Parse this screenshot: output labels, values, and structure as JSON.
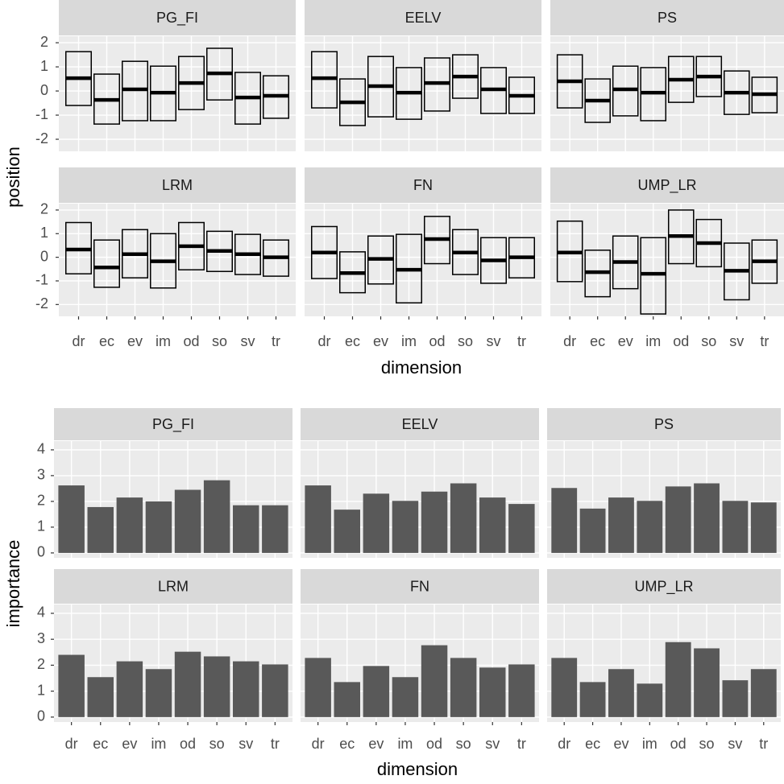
{
  "chart_data": [
    {
      "type": "crossbar",
      "xlabel": "dimension",
      "ylabel": "position",
      "color": "#000000",
      "grid": true,
      "categories": [
        "dr",
        "ec",
        "ev",
        "im",
        "od",
        "so",
        "sv",
        "tr"
      ],
      "ylim": [
        -2.5,
        2.27
      ],
      "yticks": [
        -2,
        -1,
        0,
        1,
        2
      ],
      "facets": [
        {
          "title": "PG_FI",
          "values": [
            0.53,
            -0.37,
            0.07,
            -0.07,
            0.33,
            0.73,
            -0.27,
            -0.2
          ],
          "lower": [
            -0.6,
            -1.37,
            -1.23,
            -1.23,
            -0.77,
            -0.37,
            -1.37,
            -1.13
          ],
          "upper": [
            1.63,
            0.7,
            1.23,
            1.03,
            1.43,
            1.77,
            0.77,
            0.63
          ]
        },
        {
          "title": "EELV",
          "values": [
            0.53,
            -0.47,
            0.2,
            -0.07,
            0.33,
            0.6,
            0.07,
            -0.2
          ],
          "lower": [
            -0.7,
            -1.43,
            -1.07,
            -1.17,
            -0.83,
            -0.3,
            -0.93,
            -0.93
          ],
          "upper": [
            1.63,
            0.5,
            1.43,
            0.97,
            1.37,
            1.5,
            0.97,
            0.57
          ]
        },
        {
          "title": "PS",
          "values": [
            0.4,
            -0.4,
            0.07,
            -0.07,
            0.47,
            0.6,
            -0.07,
            -0.13
          ],
          "lower": [
            -0.7,
            -1.3,
            -1.03,
            -1.23,
            -0.47,
            -0.23,
            -0.97,
            -0.9
          ],
          "upper": [
            1.5,
            0.5,
            1.03,
            0.97,
            1.43,
            1.43,
            0.83,
            0.57
          ]
        },
        {
          "title": "LRM",
          "values": [
            0.33,
            -0.43,
            0.13,
            -0.17,
            0.47,
            0.27,
            0.13,
            0
          ],
          "lower": [
            -0.7,
            -1.27,
            -0.87,
            -1.3,
            -0.53,
            -0.6,
            -0.73,
            -0.8
          ],
          "upper": [
            1.47,
            0.73,
            1.17,
            1.0,
            1.47,
            1.1,
            0.97,
            0.73
          ]
        },
        {
          "title": "FN",
          "values": [
            0.2,
            -0.67,
            -0.07,
            -0.53,
            0.77,
            0.2,
            -0.13,
            0
          ],
          "lower": [
            -0.9,
            -1.5,
            -1.13,
            -1.93,
            -0.27,
            -0.73,
            -1.1,
            -0.87
          ],
          "upper": [
            1.3,
            0.23,
            0.9,
            0.97,
            1.73,
            1.17,
            0.83,
            0.83
          ]
        },
        {
          "title": "UMP_LR",
          "values": [
            0.2,
            -0.63,
            -0.2,
            -0.7,
            0.9,
            0.6,
            -0.57,
            -0.17
          ],
          "lower": [
            -1.03,
            -1.67,
            -1.33,
            -2.4,
            -0.27,
            -0.4,
            -1.8,
            -1.1
          ],
          "upper": [
            1.53,
            0.3,
            0.9,
            0.83,
            2.0,
            1.6,
            0.6,
            0.73
          ]
        }
      ]
    },
    {
      "type": "bar",
      "xlabel": "dimension",
      "ylabel": "importance",
      "color": "#595959",
      "grid": true,
      "categories": [
        "dr",
        "ec",
        "ev",
        "im",
        "od",
        "so",
        "sv",
        "tr"
      ],
      "ylim": [
        -0.19,
        4.34
      ],
      "yticks": [
        0,
        1,
        2,
        3,
        4
      ],
      "facets": [
        {
          "title": "PG_FI",
          "values": [
            2.62,
            1.78,
            2.15,
            2.0,
            2.45,
            2.82,
            1.85,
            1.85
          ]
        },
        {
          "title": "EELV",
          "values": [
            2.62,
            1.68,
            2.3,
            2.02,
            2.38,
            2.7,
            2.15,
            1.9
          ]
        },
        {
          "title": "PS",
          "values": [
            2.52,
            1.72,
            2.15,
            2.02,
            2.58,
            2.7,
            2.02,
            1.96
          ]
        },
        {
          "title": "LRM",
          "values": [
            2.4,
            1.54,
            2.15,
            1.85,
            2.52,
            2.34,
            2.15,
            2.03
          ]
        },
        {
          "title": "FN",
          "values": [
            2.28,
            1.35,
            1.97,
            1.54,
            2.77,
            2.28,
            1.91,
            2.03
          ]
        },
        {
          "title": "UMP_LR",
          "values": [
            2.28,
            1.35,
            1.85,
            1.29,
            2.89,
            2.65,
            1.42,
            1.85
          ]
        }
      ]
    }
  ]
}
